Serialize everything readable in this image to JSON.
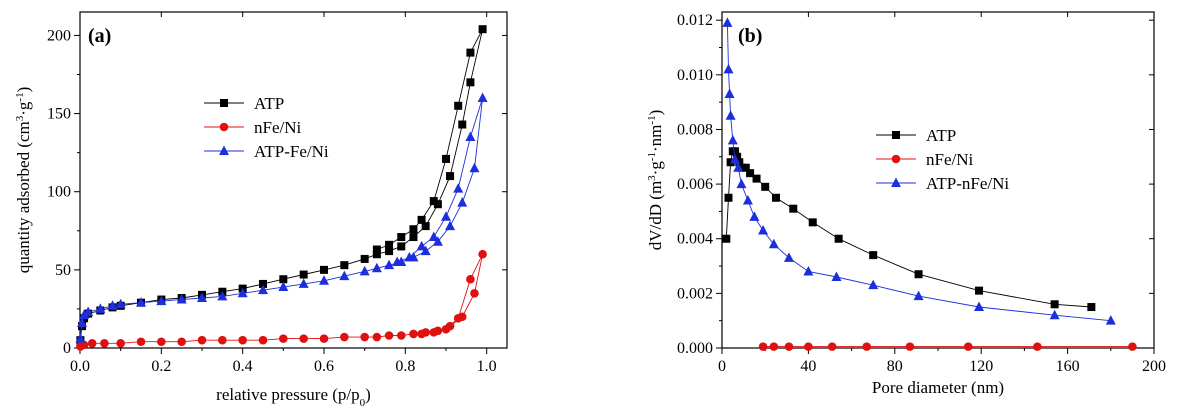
{
  "chart_data": [
    {
      "id": "a",
      "type": "line",
      "panel_label": "(a)",
      "xlabel": "relative pressure  (p/p",
      "xlabel_sub": "0",
      "xlabel_end": ")",
      "ylabel_parts": [
        "quantity adsorbed (cm",
        "3",
        "·g",
        "-1",
        ")"
      ],
      "xlim": [
        0.0,
        1.05
      ],
      "ylim": [
        0,
        215
      ],
      "xticks": [
        0.0,
        0.2,
        0.4,
        0.6,
        0.8,
        1.0
      ],
      "xtick_labels": [
        "0.0",
        "0.2",
        "0.4",
        "0.6",
        "0.8",
        "1.0"
      ],
      "yticks": [
        0,
        50,
        100,
        150,
        200
      ],
      "ytick_labels": [
        "0",
        "50",
        "100",
        "150",
        "200"
      ],
      "legend_position": "center-left",
      "series": [
        {
          "name": "ATP",
          "color": "#000000",
          "marker": "square",
          "x": [
            0.001,
            0.005,
            0.01,
            0.02,
            0.05,
            0.08,
            0.1,
            0.15,
            0.2,
            0.25,
            0.3,
            0.35,
            0.4,
            0.45,
            0.5,
            0.55,
            0.6,
            0.65,
            0.7,
            0.73,
            0.76,
            0.79,
            0.82,
            0.85,
            0.88,
            0.91,
            0.94,
            0.96,
            0.99,
            0.96,
            0.93,
            0.9,
            0.87,
            0.84,
            0.82,
            0.79,
            0.76,
            0.73
          ],
          "y": [
            5,
            14,
            19,
            22,
            24,
            26,
            27,
            29,
            31,
            32,
            34,
            36,
            38,
            41,
            44,
            47,
            50,
            53,
            57,
            60,
            62,
            65,
            71,
            78,
            92,
            110,
            143,
            170,
            204,
            189,
            155,
            121,
            94,
            82,
            76,
            71,
            66,
            63
          ]
        },
        {
          "name": "nFe/Ni",
          "color": "#e01010",
          "marker": "circle",
          "x": [
            0.001,
            0.01,
            0.03,
            0.06,
            0.1,
            0.15,
            0.2,
            0.25,
            0.3,
            0.35,
            0.4,
            0.45,
            0.5,
            0.55,
            0.6,
            0.65,
            0.7,
            0.73,
            0.76,
            0.79,
            0.82,
            0.85,
            0.88,
            0.91,
            0.94,
            0.97,
            0.99,
            0.96,
            0.93,
            0.9,
            0.87,
            0.84
          ],
          "y": [
            1,
            2,
            3,
            3,
            3,
            4,
            4,
            4,
            5,
            5,
            5,
            5,
            6,
            6,
            6,
            7,
            7,
            7,
            8,
            8,
            9,
            10,
            11,
            14,
            20,
            35,
            60,
            44,
            19,
            12,
            10,
            9
          ]
        },
        {
          "name": "ATP-Fe/Ni",
          "color": "#1d2fdc",
          "marker": "triangle",
          "x": [
            0.001,
            0.005,
            0.01,
            0.02,
            0.05,
            0.08,
            0.1,
            0.15,
            0.2,
            0.25,
            0.3,
            0.35,
            0.4,
            0.45,
            0.5,
            0.55,
            0.6,
            0.65,
            0.7,
            0.73,
            0.76,
            0.79,
            0.82,
            0.85,
            0.88,
            0.91,
            0.94,
            0.97,
            0.99,
            0.96,
            0.93,
            0.9,
            0.87,
            0.84,
            0.81,
            0.78
          ],
          "y": [
            6,
            16,
            21,
            23,
            25,
            27,
            28,
            29,
            30,
            31,
            32,
            33,
            35,
            37,
            39,
            41,
            43,
            46,
            49,
            51,
            53,
            55,
            58,
            62,
            68,
            78,
            93,
            115,
            160,
            135,
            102,
            84,
            71,
            65,
            58,
            55
          ]
        }
      ]
    },
    {
      "id": "b",
      "type": "line",
      "panel_label": "(b)",
      "xlabel": "Pore diameter (nm)",
      "ylabel_parts": [
        "dV/dD (m",
        "3",
        "·g",
        "-1",
        "·nm",
        "-1",
        ")"
      ],
      "xlim": [
        0,
        200
      ],
      "ylim": [
        0,
        0.0123
      ],
      "xticks": [
        0,
        40,
        80,
        120,
        160,
        200
      ],
      "xtick_labels": [
        "0",
        "40",
        "80",
        "120",
        "160",
        "200"
      ],
      "yticks": [
        0,
        0.002,
        0.004,
        0.006,
        0.008,
        0.01,
        0.012
      ],
      "ytick_labels": [
        "0.000",
        "0.002",
        "0.004",
        "0.006",
        "0.008",
        "0.010",
        "0.012"
      ],
      "legend_position": "center-right",
      "series": [
        {
          "name": "ATP",
          "color": "#000000",
          "marker": "square",
          "x": [
            2,
            3,
            4,
            5,
            6,
            7,
            8,
            9,
            11,
            13,
            16,
            20,
            25,
            33,
            42,
            54,
            70,
            91,
            119,
            154,
            171
          ],
          "y": [
            0.004,
            0.0055,
            0.0068,
            0.0072,
            0.0072,
            0.007,
            0.0068,
            0.0066,
            0.0066,
            0.0064,
            0.0062,
            0.0059,
            0.0055,
            0.0051,
            0.0046,
            0.004,
            0.0034,
            0.0027,
            0.0021,
            0.0016,
            0.0015
          ]
        },
        {
          "name": "nFe/Ni",
          "color": "#e01010",
          "marker": "circle",
          "x": [
            19,
            24,
            31,
            40,
            51,
            67,
            87,
            114,
            146,
            190
          ],
          "y": [
            5e-05,
            5e-05,
            5e-05,
            5e-05,
            5e-05,
            5e-05,
            5e-05,
            5e-05,
            5e-05,
            5e-05
          ]
        },
        {
          "name": "ATP-nFe/Ni",
          "color": "#1d2fdc",
          "marker": "triangle",
          "x": [
            2.5,
            3,
            3.5,
            4,
            5,
            6,
            7.5,
            9,
            12,
            15,
            19,
            24,
            31,
            40,
            53,
            70,
            91,
            119,
            154,
            180
          ],
          "y": [
            0.0119,
            0.0102,
            0.0093,
            0.0085,
            0.0076,
            0.0069,
            0.0066,
            0.006,
            0.0054,
            0.0048,
            0.0043,
            0.0038,
            0.0033,
            0.0028,
            0.0026,
            0.0023,
            0.0019,
            0.0015,
            0.0012,
            0.001
          ]
        }
      ]
    }
  ]
}
